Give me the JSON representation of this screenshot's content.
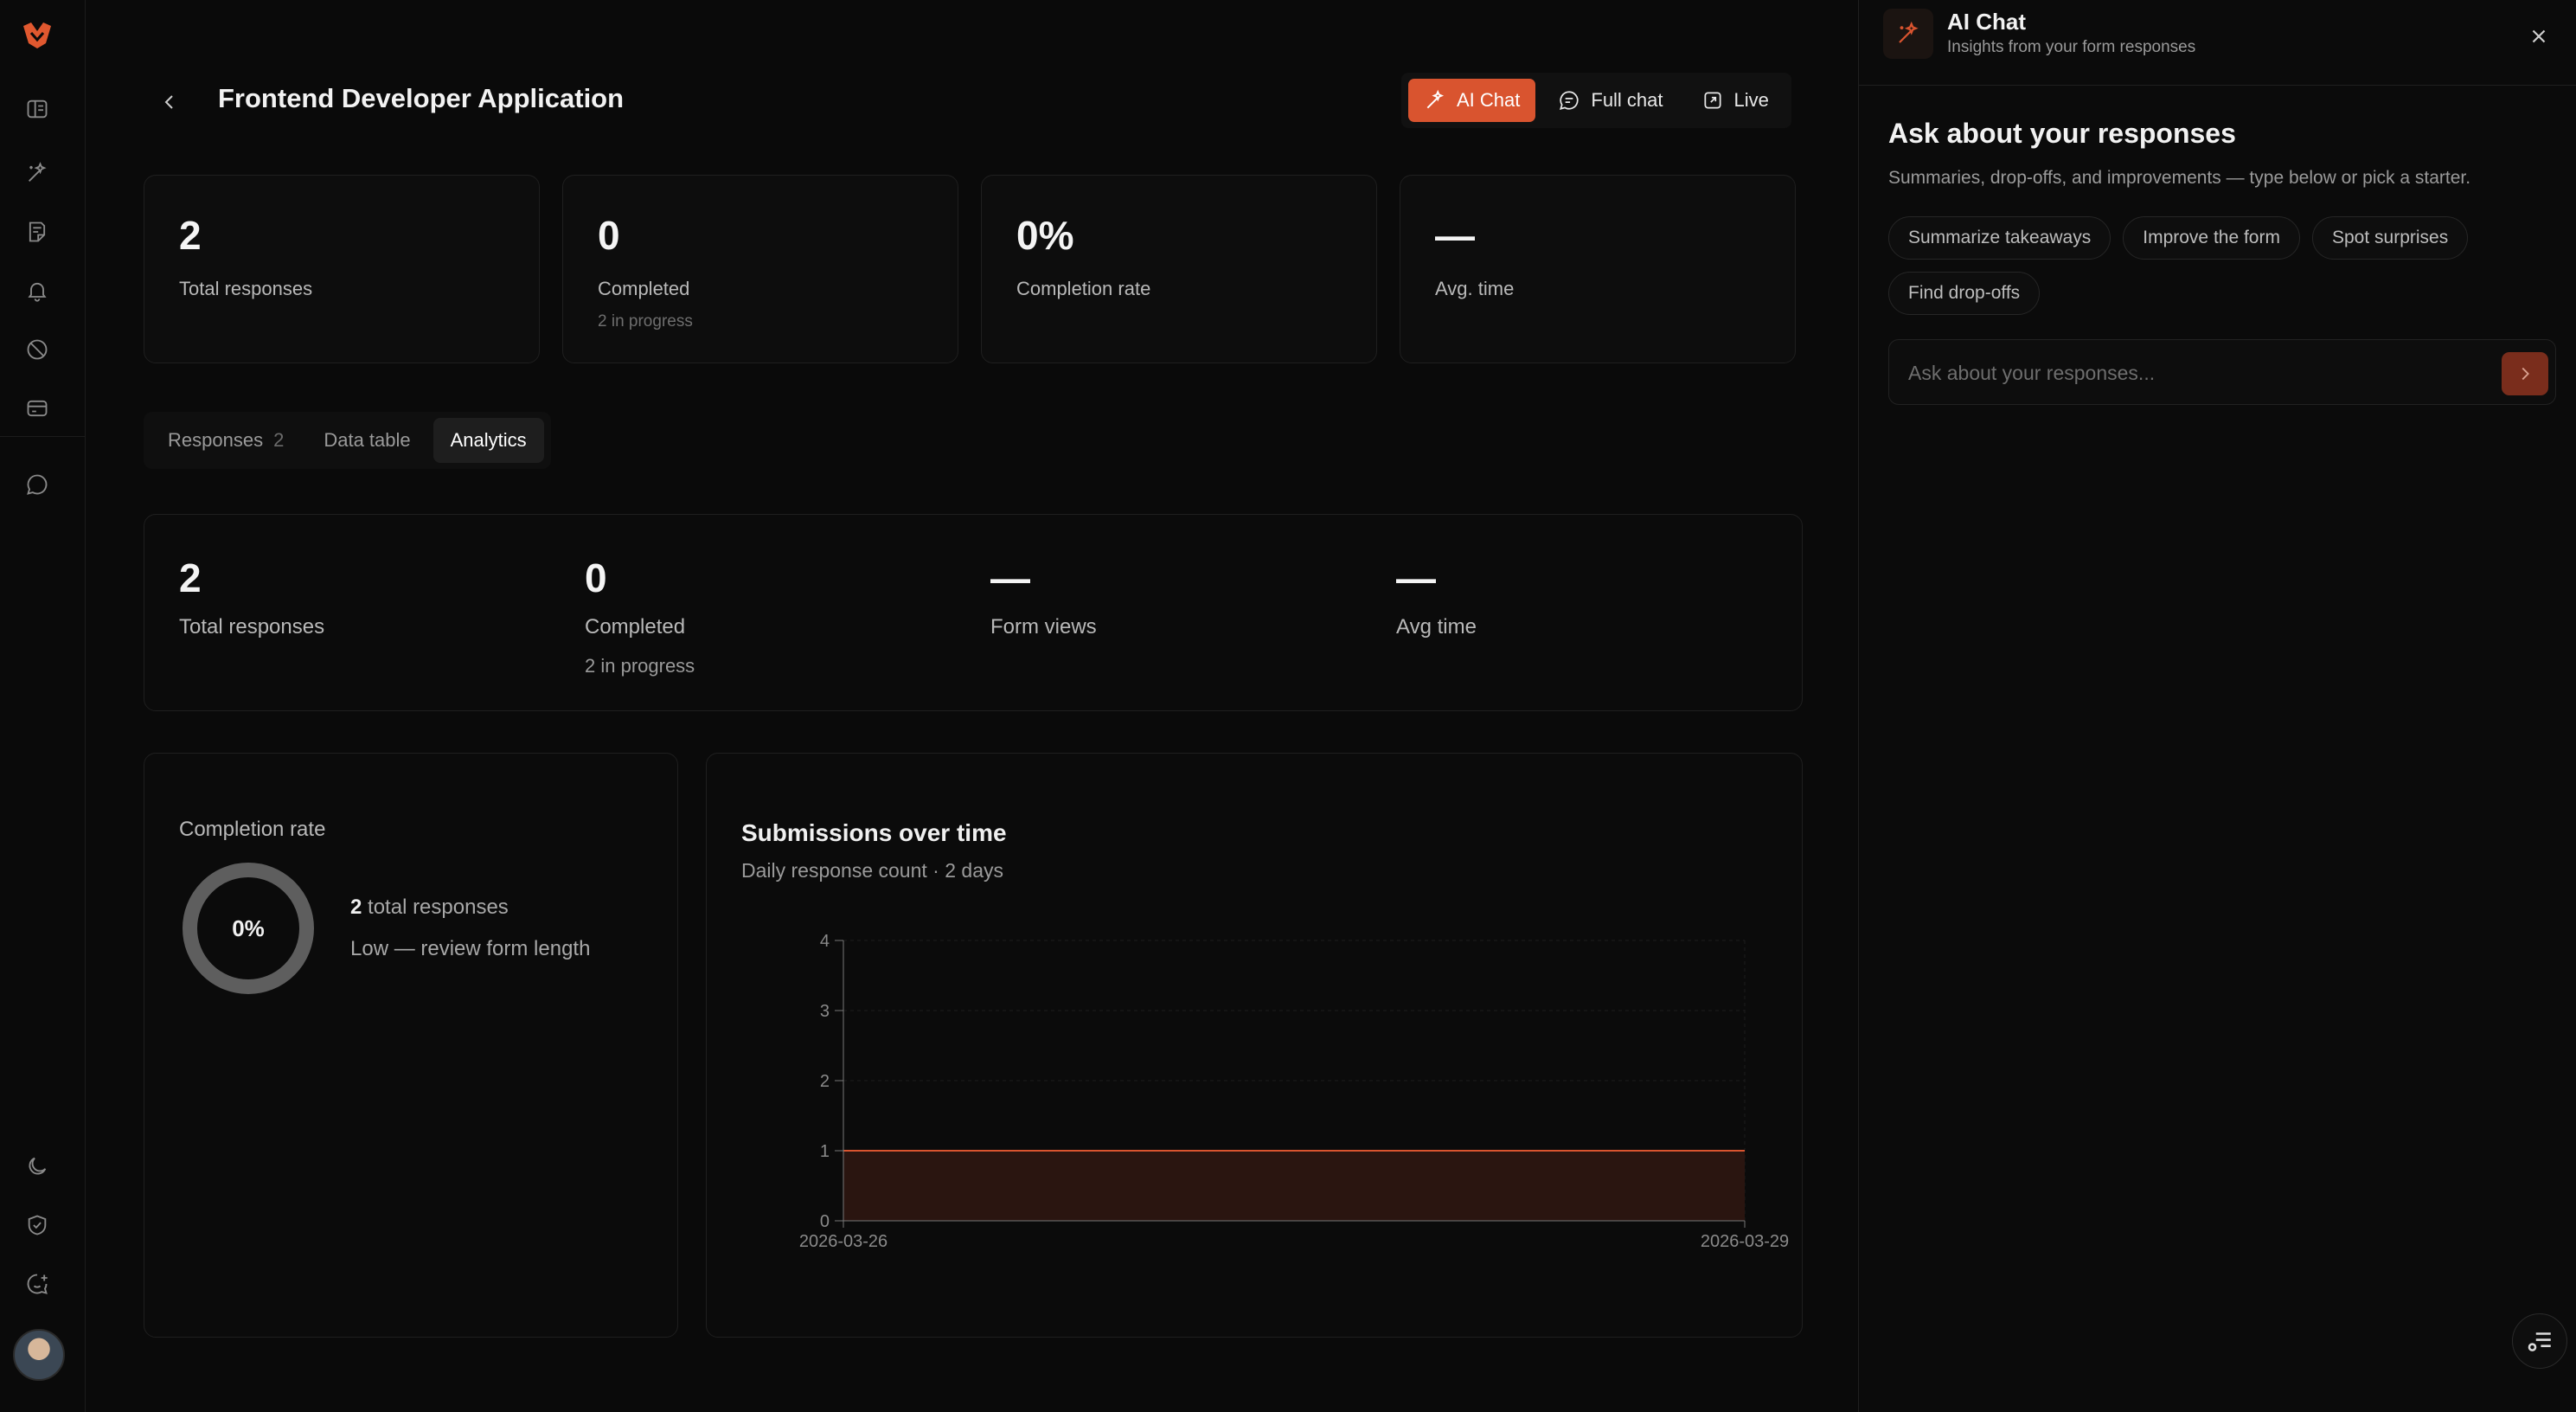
{
  "page": {
    "title": "Frontend Developer Application"
  },
  "header": {
    "ai_chat": "AI Chat",
    "full_chat": "Full chat",
    "live": "Live"
  },
  "summary_cards": [
    {
      "value": "2",
      "label": "Total responses",
      "sub": ""
    },
    {
      "value": "0",
      "label": "Completed",
      "sub": "2 in progress"
    },
    {
      "value": "0%",
      "label": "Completion rate",
      "sub": ""
    },
    {
      "value": "—",
      "label": "Avg. time",
      "sub": ""
    }
  ],
  "tabs": [
    {
      "label": "Responses",
      "count": "2",
      "active": false
    },
    {
      "label": "Data table",
      "count": "",
      "active": false
    },
    {
      "label": "Analytics",
      "count": "",
      "active": true
    }
  ],
  "analytics": {
    "stats": [
      {
        "value": "2",
        "label": "Total responses",
        "sub": ""
      },
      {
        "value": "0",
        "label": "Completed",
        "sub": "2 in progress"
      },
      {
        "value": "—",
        "label": "Form views",
        "sub": ""
      },
      {
        "value": "—",
        "label": "Avg time",
        "sub": ""
      }
    ],
    "completion": {
      "title": "Completion rate",
      "percent": "0%",
      "total_count": "2",
      "total_suffix": "total responses",
      "note": "Low — review form length"
    },
    "submissions": {
      "title": "Submissions over time",
      "subtitle": "Daily response count · 2 days"
    }
  },
  "chart_data": {
    "type": "area",
    "title": "Submissions over time",
    "subtitle": "Daily response count · 2 days",
    "x": [
      "2026-03-26",
      "2026-03-29"
    ],
    "values": [
      1,
      1
    ],
    "y_ticks": [
      0,
      1,
      2,
      3,
      4
    ],
    "ylim": [
      0,
      4
    ],
    "xlabel": "",
    "ylabel": "",
    "grid": true,
    "color": "#d9542f"
  },
  "ai_panel": {
    "title": "AI Chat",
    "subtitle": "Insights from your form responses",
    "heading": "Ask about your responses",
    "description": "Summaries, drop-offs, and improvements — type below or pick a starter.",
    "starters": [
      "Summarize takeaways",
      "Improve the form",
      "Spot surprises",
      "Find drop-offs"
    ],
    "input_placeholder": "Ask about your responses..."
  },
  "colors": {
    "accent": "#d9542f",
    "background": "#0a0a0a",
    "card": "#0d0d0d",
    "border": "#1f1f1f"
  },
  "icons": {
    "rail": [
      "logo-icon",
      "layout-icon",
      "sparkles-icon",
      "forms-icon",
      "bell-icon",
      "tag-icon",
      "card-icon",
      "chat-icon",
      "moon-icon",
      "shield-icon",
      "feedback-icon"
    ]
  }
}
